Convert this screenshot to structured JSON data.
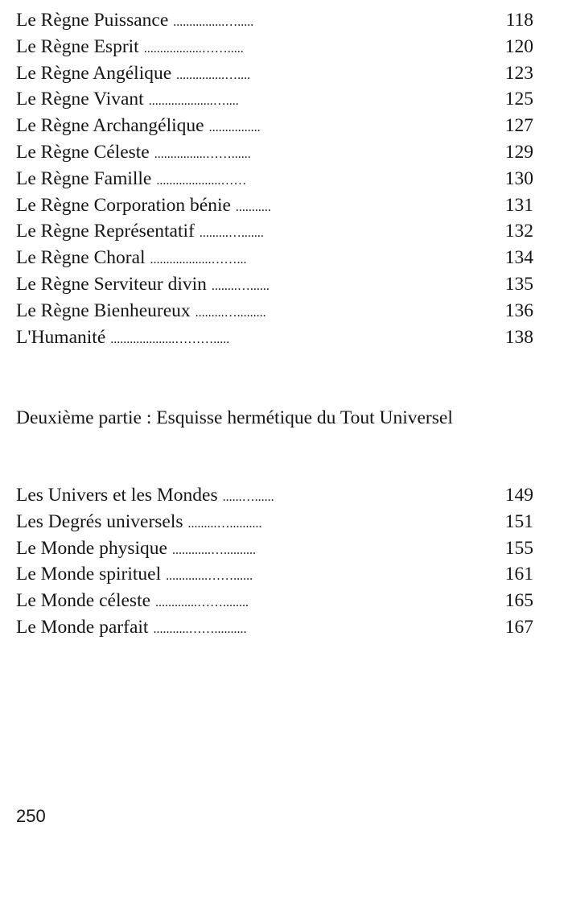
{
  "part_one_entries": [
    {
      "title": "Le Règne Puissance",
      "leader": "................….....",
      "page": "118"
    },
    {
      "title": "Le Règne Esprit",
      "leader": "..................…….....",
      "page": "120"
    },
    {
      "title": "Le Règne Angélique",
      "leader": "...............…....",
      "page": "123"
    },
    {
      "title": "Le Règne Vivant",
      "leader": "....................…....",
      "page": "125"
    },
    {
      "title": "Le Règne Archangélique",
      "leader": "................",
      "page": "127"
    },
    {
      "title": "Le Règne Céleste",
      "leader": "................……......",
      "page": "129"
    },
    {
      "title": "Le Règne Famille",
      "leader": "....................……",
      "page": "130"
    },
    {
      "title": "Le Règne Corporation bénie",
      "leader": "...........",
      "page": "131"
    },
    {
      "title": "Le Règne Représentatif",
      "leader": ".........….......",
      "page": "132"
    },
    {
      "title": "Le Règne Choral",
      "leader": "...................……...",
      "page": "134"
    },
    {
      "title": "Le Règne Serviteur divin",
      "leader": "........…......",
      "page": "135"
    },
    {
      "title": "Le Règne Bienheureux",
      "leader": ".........….........",
      "page": "136"
    },
    {
      "title": "L'Humanité",
      "leader": "....................……….....",
      "page": "138"
    }
  ],
  "part_two_heading": "Deuxième partie : Esquisse hermétique du Tout Universel",
  "part_two_entries": [
    {
      "title": "Les Univers et les Mondes",
      "leader": "......…......",
      "page": "149"
    },
    {
      "title": "Les Degrés universels",
      "leader": ".........…..........",
      "page": "151"
    },
    {
      "title": "Le Monde physique",
      "leader": "............…..........",
      "page": "155"
    },
    {
      "title": "Le Monde spirituel",
      "leader": ".............……......",
      "page": "161"
    },
    {
      "title": "Le Monde céleste",
      "leader": ".............……........",
      "page": "165"
    },
    {
      "title": "Le Monde parfait",
      "leader": "...........……..........",
      "page": "167"
    }
  ],
  "folio": "250"
}
